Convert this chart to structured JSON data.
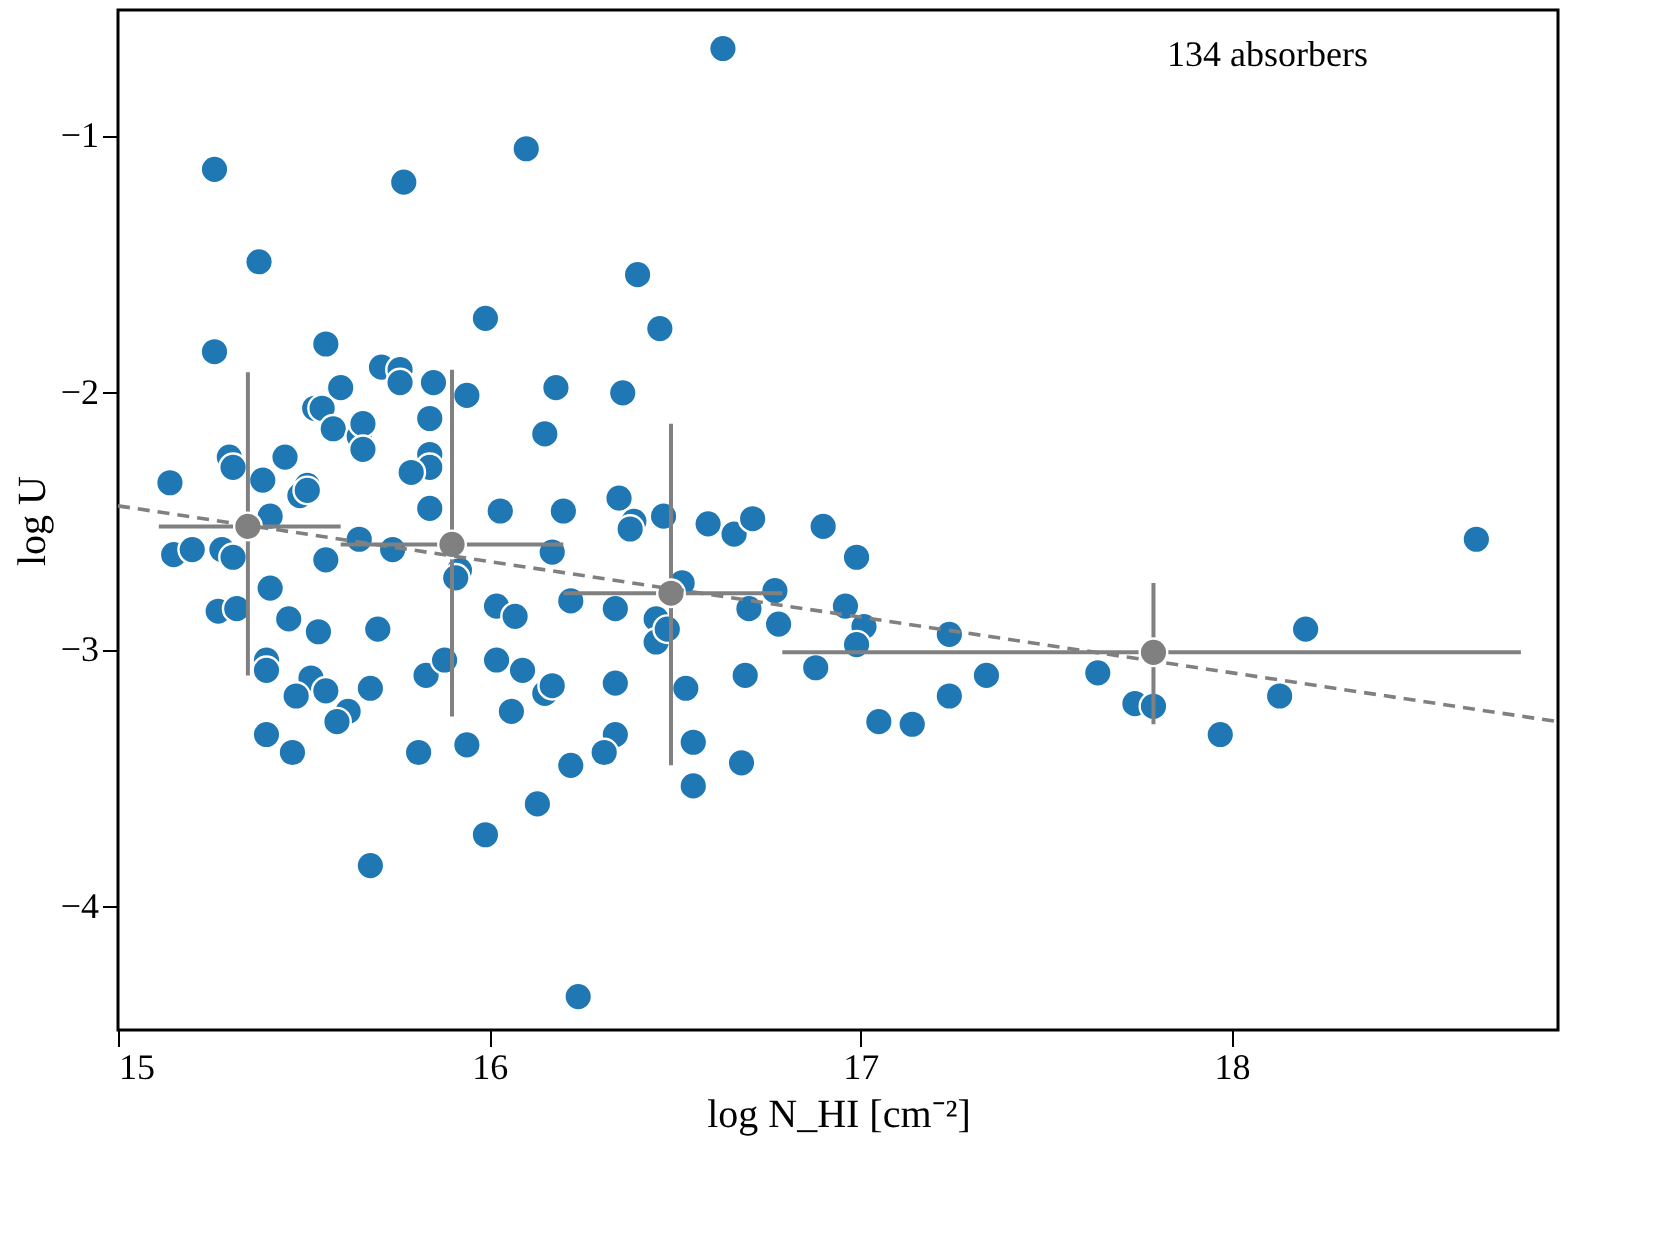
{
  "chart_data": {
    "type": "scatter",
    "xlabel": "log N_HI [cm⁻²]",
    "ylabel": "log U",
    "annotations": [
      "134 absorbers"
    ],
    "xlim": [
      15,
      18.88
    ],
    "ylim": [
      -4.48,
      -0.51
    ],
    "xticks": [
      15,
      16,
      17,
      18
    ],
    "yticks": [
      -1,
      -2,
      -3,
      -4
    ],
    "grid": false,
    "series": [
      {
        "marker": "circle",
        "color": "#1f77b4",
        "x": [
          15.14,
          15.15,
          15.2,
          15.26,
          15.26,
          15.38,
          15.77,
          16.1,
          16.4,
          16.46,
          15.99,
          15.56,
          15.71,
          15.76,
          15.76,
          15.85,
          15.94,
          16.18,
          16.36,
          15.6,
          15.53,
          15.55,
          15.58,
          15.65,
          15.66,
          15.66,
          15.84,
          16.15,
          15.84,
          15.84,
          15.79,
          15.45,
          15.3,
          15.31,
          15.39,
          15.51,
          15.49,
          15.84,
          16.03,
          16.2,
          16.35,
          16.39,
          15.51,
          16.38,
          16.47,
          15.28,
          15.31,
          15.41,
          15.56,
          15.65,
          15.74,
          15.92,
          15.91,
          16.17,
          16.22,
          16.34,
          16.45,
          16.45,
          15.27,
          15.32,
          15.41,
          15.46,
          15.54,
          15.7,
          15.4,
          15.4,
          15.52,
          15.56,
          15.48,
          15.62,
          15.59,
          15.68,
          15.4,
          15.47,
          15.81,
          15.94,
          15.83,
          15.88,
          16.02,
          16.07,
          16.02,
          16.09,
          16.06,
          16.15,
          16.17,
          16.34,
          16.34,
          16.31,
          16.22,
          16.13,
          15.99,
          15.68,
          16.24,
          16.63,
          16.59,
          16.66,
          16.71,
          16.9,
          16.99,
          16.52,
          16.48,
          16.7,
          16.77,
          16.78,
          16.96,
          17.01,
          16.99,
          17.24,
          16.88,
          18.2,
          18.66,
          16.53,
          16.69,
          17.34,
          17.64,
          17.24,
          18.13,
          17.05,
          17.14,
          17.74,
          17.79,
          17.97,
          16.55,
          16.68,
          16.55
        ],
        "values": [
          -2.35,
          -2.63,
          -2.61,
          -1.13,
          -1.84,
          -1.49,
          -1.18,
          -1.05,
          -1.54,
          -1.75,
          -1.71,
          -1.81,
          -1.9,
          -1.91,
          -1.96,
          -1.96,
          -2.01,
          -1.98,
          -2.0,
          -1.98,
          -2.06,
          -2.06,
          -2.14,
          -2.17,
          -2.12,
          -2.22,
          -2.1,
          -2.16,
          -2.24,
          -2.29,
          -2.31,
          -2.25,
          -2.25,
          -2.29,
          -2.34,
          -2.36,
          -2.4,
          -2.45,
          -2.46,
          -2.46,
          -2.41,
          -2.5,
          -2.38,
          -2.53,
          -2.48,
          -2.61,
          -2.64,
          -2.48,
          -2.65,
          -2.57,
          -2.61,
          -2.69,
          -2.72,
          -2.62,
          -2.81,
          -2.84,
          -2.88,
          -2.97,
          -2.85,
          -2.84,
          -2.76,
          -2.88,
          -2.93,
          -2.92,
          -3.04,
          -3.08,
          -3.11,
          -3.16,
          -3.18,
          -3.24,
          -3.28,
          -3.15,
          -3.33,
          -3.4,
          -3.4,
          -3.37,
          -3.1,
          -3.04,
          -2.83,
          -2.87,
          -3.04,
          -3.08,
          -3.24,
          -3.17,
          -3.14,
          -3.13,
          -3.33,
          -3.4,
          -3.45,
          -3.6,
          -3.72,
          -3.84,
          -4.35,
          -0.66,
          -2.51,
          -2.55,
          -2.49,
          -2.52,
          -2.64,
          -2.74,
          -2.92,
          -2.84,
          -2.77,
          -2.9,
          -2.83,
          -2.91,
          -2.98,
          -2.94,
          -3.07,
          -2.92,
          -2.57,
          -3.15,
          -3.1,
          -3.1,
          -3.09,
          -3.18,
          -3.18,
          -3.28,
          -3.29,
          -3.21,
          -3.22,
          -3.33,
          -3.36,
          -3.44,
          -3.53
        ]
      },
      {
        "marker": "circle",
        "color": "#808080",
        "x": [
          15.35,
          15.9,
          16.49,
          17.79
        ],
        "values": [
          -2.52,
          -2.59,
          -2.78,
          -3.01
        ],
        "errors": [
          [
            -3.1,
            -1.92
          ],
          [
            -3.26,
            -1.91
          ],
          [
            -3.45,
            -2.12
          ],
          [
            -3.29,
            -2.74
          ]
        ],
        "xerrors": [
          [
            15.11,
            15.6
          ],
          [
            15.6,
            16.2
          ],
          [
            16.2,
            16.79
          ],
          [
            16.79,
            18.78
          ]
        ]
      },
      {
        "type": "line",
        "color": "#808080",
        "line_style": "dashed",
        "x": [
          15,
          18.88
        ],
        "values": [
          -2.44,
          -3.28
        ]
      }
    ]
  }
}
